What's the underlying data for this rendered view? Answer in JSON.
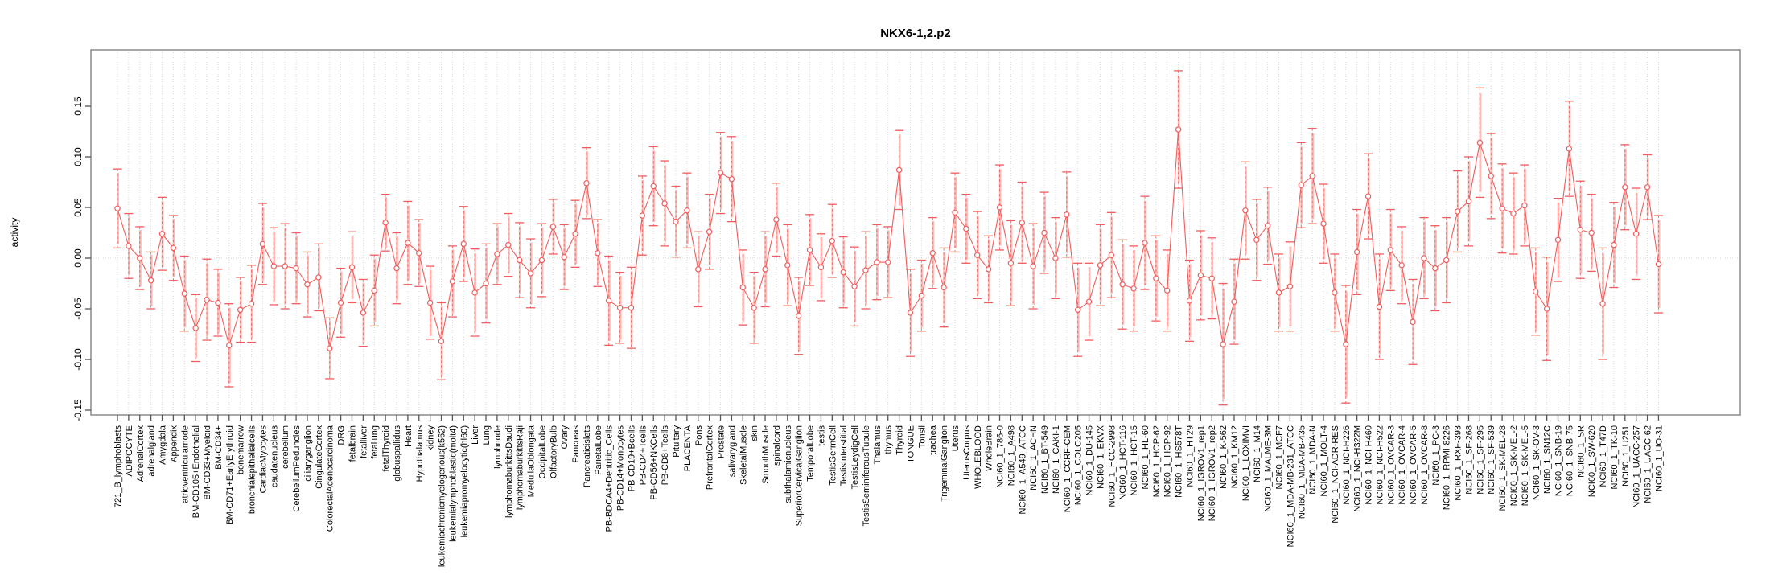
{
  "window": {
    "title": "NKX6-1,2.p2"
  },
  "chart_data": {
    "type": "line",
    "title": "NKX6-1,2.p2",
    "xlabel": "",
    "ylabel": "activity",
    "legend": "none",
    "grid": "vertical dotted gridline per category; dotted horizontal line at y=0",
    "marker": "open-circle with vertical error bars (dashed stems, capped ends)",
    "ylim": [
      -0.16,
      0.198
    ],
    "ytick_values": [
      -0.15,
      -0.1,
      -0.05,
      0.0,
      0.05,
      0.1,
      0.15
    ],
    "ytick_labels": [
      "-0.15",
      "-0.10",
      "-0.05",
      "0.00",
      "0.05",
      "0.10",
      "0.15"
    ],
    "colors": {
      "series_line": "#F15C5C",
      "error_band": "#F7A6A0",
      "gridline": "#D8D8D8",
      "axis_box": "#8A8A8A",
      "tick": "#555555",
      "text": "#000000",
      "background": "#FFFFFF"
    },
    "categories": [
      "721_B_lymphoblasts",
      "ADIPOCYTE",
      "AdrenalCortex",
      "adrenalgland",
      "Amygdala",
      "Appendix",
      "atrioventricularnode",
      "BM-CD105+Endothelial",
      "BM-CD33+Myeloid",
      "BM-CD34+",
      "BM-CD71+EarlyErythroid",
      "bonemarrow",
      "bronchialepithelialcells",
      "CardiacMyocytes",
      "caudatenucleus",
      "cerebellum",
      "CerebellumPeduncles",
      "ciliaryganglion",
      "CingulateCortex",
      "ColorectalAdenocarcinoma",
      "DRG",
      "fetalbrain",
      "fetalliver",
      "fetallung",
      "fetalThyroid",
      "globuspallidus",
      "Heart",
      "Hypothalamus",
      "kidney",
      "leukemiachronicmyelogenous(k562)",
      "leukemialymphoblastic(molt4)",
      "leukemiapromyelocytic(hl60)",
      "Liver",
      "Lung",
      "lymphnode",
      "lymphomaburkittsDaudi",
      "lymphomaburkittsRaji",
      "MedullaOblongata",
      "OccipitalLobe",
      "OlfactoryBulb",
      "Ovary",
      "Pancreas",
      "Pancreaticislets",
      "ParietalLobe",
      "PB-BDCA4+Dentritic_Cells",
      "PB-CD14+Monocytes",
      "PB-CD19+Bcells",
      "PB-CD4+Tcells",
      "PB-CD56+NKCells",
      "PB-CD8+Tcells",
      "Pituitary",
      "PLACENTA",
      "Pons",
      "PrefrontalCortex",
      "Prostate",
      "salivarygland",
      "SkeletalMuscle",
      "skin",
      "SmoothMuscle",
      "spinalcord",
      "subthalamicnucleus",
      "SuperiorCervicalGanglion",
      "TemporalLobe",
      "testis",
      "TestisGermCell",
      "TestisInterstitial",
      "TestisLeydigCell",
      "TestisSeminiferousTubule",
      "Thalamus",
      "thymus",
      "Thyroid",
      "TONGUE",
      "Tonsil",
      "trachea",
      "TrigeminalGanglion",
      "Uterus",
      "UterusCorpus",
      "WHOLEBLOOD",
      "WholeBrain",
      "NCI60_1_786-0",
      "NCI60_1_A498",
      "NCI60_1_A549_ATCC",
      "NCI60_1_ACHN",
      "NCI60_1_BT-549",
      "NCI60_1_CAKI-1",
      "NCI60_1_CCRF-CEM",
      "NCI60_1_COLO205",
      "NCI60_1_DU-145",
      "NCI60_1_EKVX",
      "NCI60_1_HCC-2998",
      "NCI60_1_HCT-116",
      "NCI60_1_HCT-15",
      "NCI60_1_HL-60",
      "NCI60_1_HOP-62",
      "NCI60_1_HOP-92",
      "NCI60_1_HS578T",
      "NCI60_1_HT29",
      "NCI60_1_IGROV1_rep1",
      "NCI60_1_IGROV1_rep2",
      "NCI60_1_K-562",
      "NCI60_1_KM12",
      "NCI60_1_LOXIMVI",
      "NCI60_1_M14",
      "NCI60_1_MALME-3M",
      "NCI60_1_MCF7",
      "NCI60_1_MDA-MB-231_ATCC",
      "NCI60_1_MDA-MB-435",
      "NCI60_1_MDA-N",
      "NCI60_1_MOLT-4",
      "NCI60_1_NCI-ADR-RES",
      "NCI60_1_NCI-H226",
      "NCI60_1_NCI-H322M",
      "NCI60_1_NCI-H460",
      "NCI60_1_NCI-H522",
      "NCI60_1_OVCAR-3",
      "NCI60_1_OVCAR-4",
      "NCI60_1_OVCAR-5",
      "NCI60_1_OVCAR-8",
      "NCI60_1_PC-3",
      "NCI60_1_RPMI-8226",
      "NCI60_1_RXF-393",
      "NCI60_1_SF-268",
      "NCI60_1_SF-295",
      "NCI60_1_SF-539",
      "NCI60_1_SK-MEL-28",
      "NCI60_1_SK-MEL-2",
      "NCI60_1_SK-MEL-5",
      "NCI60_1_SK-OV-3",
      "NCI60_1_SN12C",
      "NCI60_1_SNB-19",
      "NCI60_1_SNB-75",
      "NCI60_1_SR",
      "NCI60_1_SW-620",
      "NCI60_1_T47D",
      "NCI60_1_TK-10",
      "NCI60_1_U251",
      "NCI60_1_UACC-257",
      "NCI60_1_UACC-62",
      "NCI60_1_UO-31"
    ],
    "values": [
      0.049,
      0.012,
      0.0,
      -0.022,
      0.024,
      0.01,
      -0.035,
      -0.069,
      -0.041,
      -0.044,
      -0.086,
      -0.051,
      -0.045,
      0.014,
      -0.008,
      -0.008,
      -0.01,
      -0.026,
      -0.019,
      -0.089,
      -0.044,
      -0.009,
      -0.054,
      -0.032,
      0.035,
      -0.01,
      0.015,
      0.005,
      -0.044,
      -0.082,
      -0.023,
      0.014,
      -0.034,
      -0.025,
      0.004,
      0.013,
      -0.002,
      -0.015,
      -0.002,
      0.031,
      0.001,
      0.024,
      0.074,
      0.005,
      -0.042,
      -0.049,
      -0.049,
      0.042,
      0.071,
      0.054,
      0.036,
      0.047,
      -0.011,
      0.026,
      0.084,
      0.078,
      -0.029,
      -0.049,
      -0.011,
      0.038,
      -0.007,
      -0.057,
      0.008,
      -0.009,
      0.017,
      -0.014,
      -0.028,
      -0.012,
      -0.004,
      -0.004,
      0.087,
      -0.054,
      -0.037,
      0.005,
      -0.029,
      0.045,
      0.029,
      0.003,
      -0.011,
      0.05,
      -0.005,
      0.035,
      -0.008,
      0.025,
      0.0,
      0.043,
      -0.051,
      -0.043,
      -0.007,
      0.003,
      -0.026,
      -0.03,
      0.015,
      -0.02,
      -0.032,
      0.127,
      -0.042,
      -0.017,
      -0.02,
      -0.085,
      -0.043,
      0.047,
      0.018,
      0.032,
      -0.034,
      -0.028,
      0.072,
      0.081,
      0.034,
      -0.034,
      -0.085,
      0.006,
      0.061,
      -0.048,
      0.008,
      -0.007,
      -0.063,
      0.0,
      -0.01,
      -0.002,
      0.046,
      0.056,
      0.114,
      0.081,
      0.049,
      0.044,
      0.052,
      -0.033,
      -0.05,
      0.018,
      0.108,
      0.028,
      0.025,
      -0.045,
      0.013,
      0.07,
      0.024,
      0.07,
      -0.006
    ],
    "ci_halfwidth": [
      0.039,
      0.032,
      0.031,
      0.028,
      0.036,
      0.032,
      0.037,
      0.033,
      0.04,
      0.033,
      0.041,
      0.032,
      0.038,
      0.04,
      0.038,
      0.042,
      0.035,
      0.032,
      0.033,
      0.03,
      0.034,
      0.035,
      0.033,
      0.035,
      0.028,
      0.035,
      0.041,
      0.033,
      0.036,
      0.038,
      0.035,
      0.037,
      0.043,
      0.039,
      0.03,
      0.031,
      0.037,
      0.034,
      0.036,
      0.027,
      0.032,
      0.033,
      0.035,
      0.033,
      0.044,
      0.035,
      0.04,
      0.039,
      0.039,
      0.042,
      0.035,
      0.037,
      0.037,
      0.037,
      0.04,
      0.042,
      0.037,
      0.035,
      0.037,
      0.036,
      0.04,
      0.038,
      0.035,
      0.033,
      0.036,
      0.035,
      0.039,
      0.038,
      0.037,
      0.035,
      0.039,
      0.043,
      0.035,
      0.035,
      0.039,
      0.039,
      0.034,
      0.043,
      0.033,
      0.042,
      0.042,
      0.04,
      0.042,
      0.04,
      0.04,
      0.042,
      0.046,
      0.038,
      0.04,
      0.042,
      0.044,
      0.042,
      0.046,
      0.042,
      0.04,
      0.058,
      0.04,
      0.044,
      0.04,
      0.06,
      0.042,
      0.048,
      0.04,
      0.038,
      0.038,
      0.044,
      0.042,
      0.047,
      0.039,
      0.038,
      0.058,
      0.042,
      0.042,
      0.052,
      0.04,
      0.038,
      0.042,
      0.04,
      0.042,
      0.042,
      0.04,
      0.044,
      0.054,
      0.042,
      0.044,
      0.04,
      0.04,
      0.043,
      0.051,
      0.041,
      0.047,
      0.048,
      0.038,
      0.055,
      0.042,
      0.042,
      0.045,
      0.032,
      0.048
    ]
  }
}
